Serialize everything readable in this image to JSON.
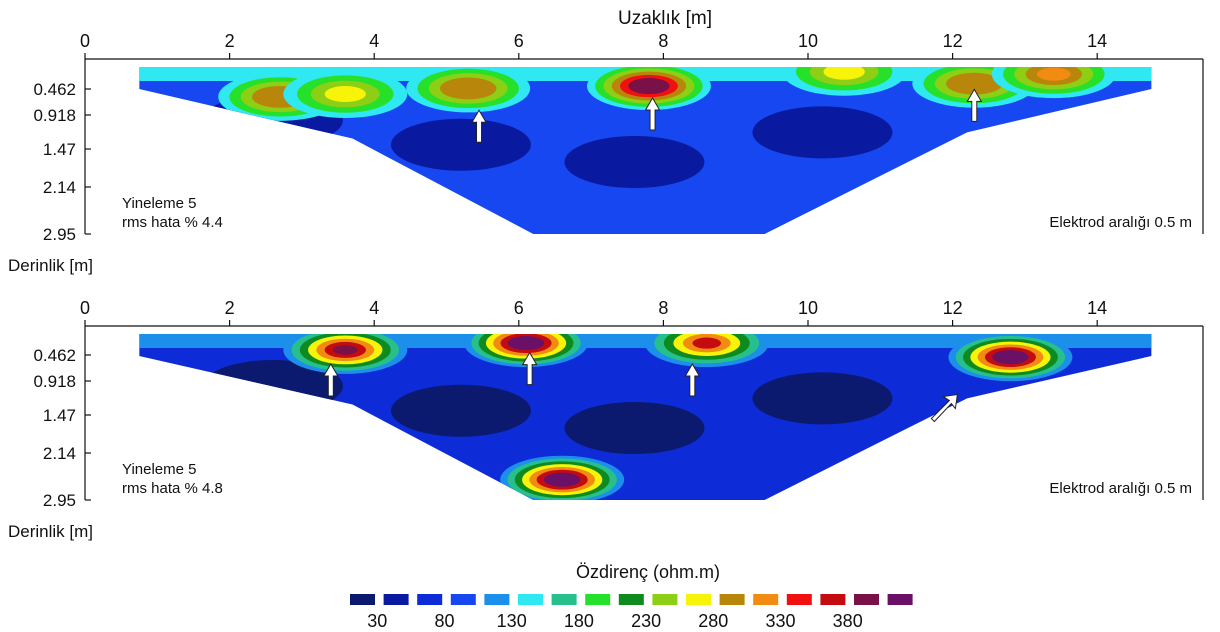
{
  "top_xlabel": "Uzaklık [m]",
  "legend_title": "Özdirenç (ohm.m)",
  "legend_colors": [
    "#0b1a6e",
    "#0a1aa0",
    "#0d2bd6",
    "#1747f0",
    "#1b8fea",
    "#2fe8f2",
    "#27c08c",
    "#27e02a",
    "#0e8a1e",
    "#8ccf14",
    "#f7f40a",
    "#b8860b",
    "#f28b12",
    "#f01010",
    "#c40c10",
    "#7a1048",
    "#6a1066"
  ],
  "legend_ticks": [
    "30",
    "80",
    "130",
    "180",
    "230",
    "280",
    "330",
    "380"
  ],
  "chart_data": [
    {
      "type": "heatmap",
      "name": "top-section",
      "xlabel_top": "Uzaklık [m]",
      "ylabel": "Derinlik [m]",
      "x_ticks": [
        0,
        2,
        4,
        6,
        8,
        10,
        12,
        14
      ],
      "y_ticks": [
        "0.462",
        "0.918",
        "1.47",
        "2.14",
        "2.95"
      ],
      "xlim": [
        0,
        15.5
      ],
      "ylim_depth": [
        0,
        2.95
      ],
      "annotation_left": [
        "Yineleme 5",
        "rms hata % 4.4"
      ],
      "annotation_right": "Elektrod aralığı 0.5 m",
      "section_x": [
        0.75,
        14.75
      ],
      "background_ohm": 80,
      "anomalies": [
        {
          "x": 2.7,
          "depth": 0.6,
          "peak_ohm": 290
        },
        {
          "x": 3.6,
          "depth": 0.55,
          "peak_ohm": 270
        },
        {
          "x": 5.3,
          "depth": 0.45,
          "peak_ohm": 285
        },
        {
          "x": 7.8,
          "depth": 0.4,
          "peak_ohm": 400
        },
        {
          "x": 10.5,
          "depth": 0.1,
          "peak_ohm": 260
        },
        {
          "x": 12.3,
          "depth": 0.35,
          "peak_ohm": 300
        },
        {
          "x": 13.4,
          "depth": 0.15,
          "peak_ohm": 320
        }
      ],
      "arrows": [
        {
          "x": 5.45,
          "depth": 1.1,
          "dir": "up"
        },
        {
          "x": 7.85,
          "depth": 0.9,
          "dir": "up"
        },
        {
          "x": 12.3,
          "depth": 0.75,
          "dir": "up"
        }
      ]
    },
    {
      "type": "heatmap",
      "name": "bottom-section",
      "ylabel": "Derinlik [m]",
      "x_ticks": [
        0,
        2,
        4,
        6,
        8,
        10,
        12,
        14
      ],
      "y_ticks": [
        "0.462",
        "0.918",
        "1.47",
        "2.14",
        "2.95"
      ],
      "xlim": [
        0,
        15.5
      ],
      "ylim_depth": [
        0,
        2.95
      ],
      "annotation_left": [
        "Yineleme 5",
        "rms hata % 4.8"
      ],
      "annotation_right": "Elektrod aralığı 0.5 m",
      "section_x": [
        0.75,
        14.75
      ],
      "background_ohm": 60,
      "anomalies": [
        {
          "x": 3.6,
          "depth": 0.35,
          "peak_ohm": 380
        },
        {
          "x": 6.1,
          "depth": 0.2,
          "peak_ohm": 420
        },
        {
          "x": 8.6,
          "depth": 0.2,
          "peak_ohm": 360
        },
        {
          "x": 12.8,
          "depth": 0.5,
          "peak_ohm": 430
        },
        {
          "x": 6.6,
          "depth": 2.6,
          "peak_ohm": 440
        }
      ],
      "arrows": [
        {
          "x": 3.4,
          "depth": 0.9,
          "dir": "up"
        },
        {
          "x": 6.15,
          "depth": 0.7,
          "dir": "up"
        },
        {
          "x": 8.4,
          "depth": 0.9,
          "dir": "up"
        },
        {
          "x": 11.9,
          "depth": 1.3,
          "dir": "up-right"
        }
      ]
    }
  ]
}
